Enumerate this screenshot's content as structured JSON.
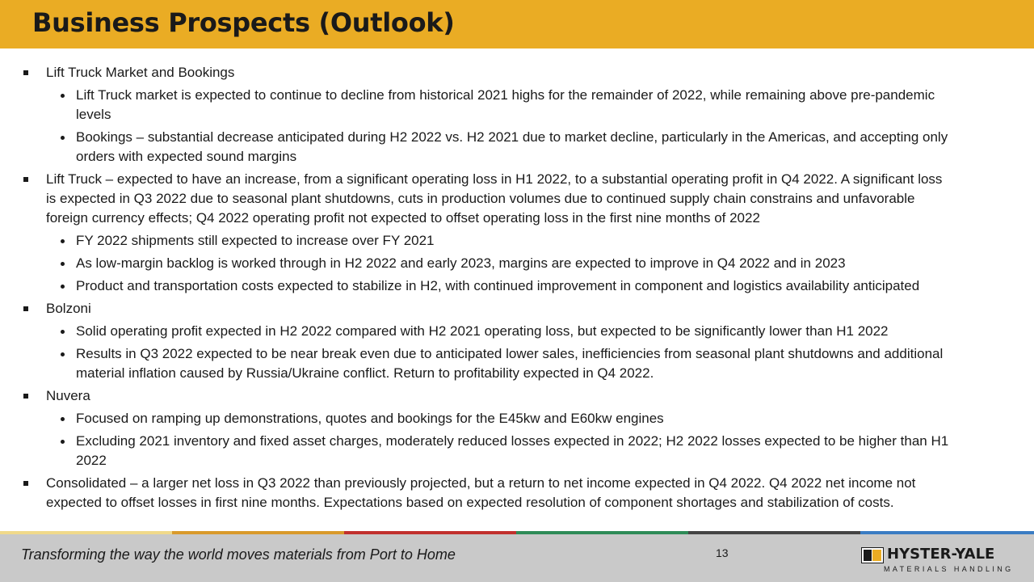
{
  "title": "Business Prospects (Outlook)",
  "content": [
    {
      "text": "Lift Truck Market and Bookings",
      "items": [
        {
          "lines": [
            "Lift Truck market is expected to continue to decline from historical 2021 highs for the remainder of 2022, while remaining above pre-pandemic",
            "levels"
          ]
        },
        {
          "lines": [
            "Bookings – substantial decrease anticipated during H2 2022 vs. H2 2021 due to market decline, particularly in the Americas, and accepting only",
            "orders with expected sound margins"
          ]
        }
      ]
    },
    {
      "lines": [
        "Lift Truck – expected to have an increase, from a significant operating loss in H1 2022, to a substantial operating profit in Q4 2022. A significant loss",
        "is expected in Q3 2022 due to seasonal plant shutdowns, cuts in production volumes due to continued supply chain constrains and unfavorable",
        "foreign currency effects; Q4 2022 operating profit not expected to offset operating loss in the first nine months of 2022"
      ],
      "items": [
        {
          "lines": [
            "FY 2022 shipments still expected to increase over FY 2021"
          ]
        },
        {
          "lines": [
            "As low-margin backlog is worked through in H2 2022 and early 2023, margins are expected to improve in Q4 2022 and in 2023"
          ]
        },
        {
          "lines": [
            "Product and transportation costs expected to stabilize in H2, with continued improvement in component and logistics availability anticipated"
          ]
        }
      ]
    },
    {
      "text": "Bolzoni",
      "items": [
        {
          "lines": [
            "Solid operating profit expected in H2 2022 compared with H2 2021 operating loss, but expected to be significantly lower than H1 2022"
          ]
        },
        {
          "lines": [
            "Results in Q3 2022 expected to be near break even due to anticipated lower sales, inefficiencies from seasonal plant shutdowns and additional",
            "material inflation caused by Russia/Ukraine conflict. Return to profitability expected in Q4 2022."
          ]
        }
      ]
    },
    {
      "text": "Nuvera",
      "items": [
        {
          "lines": [
            "Focused on ramping up demonstrations, quotes and bookings for the E45kw and E60kw engines"
          ]
        },
        {
          "lines": [
            "Excluding 2021 inventory and fixed asset charges, moderately reduced losses expected in 2022; H2 2022 losses expected to be higher than H1",
            "2022"
          ]
        }
      ]
    },
    {
      "lines": [
        "Consolidated – a larger net loss in Q3 2022 than previously projected, but a return to net income expected in Q4 2022. Q4 2022 net income not",
        "expected to offset losses in first nine months. Expectations based on expected resolution of component shortages and stabilization of costs."
      ]
    }
  ],
  "colors": {
    "header": "#eaac24",
    "stripes": [
      "#f0d98a",
      "#d99a2b",
      "#c1302d",
      "#2e8b57",
      "#444444",
      "#3a7cc3"
    ]
  },
  "footer": {
    "tagline": "Transforming the way the world moves materials from Port to Home",
    "page_number": "13",
    "logo_name": "HYSTER-YALE",
    "logo_sub": "MATERIALS HANDLING"
  }
}
